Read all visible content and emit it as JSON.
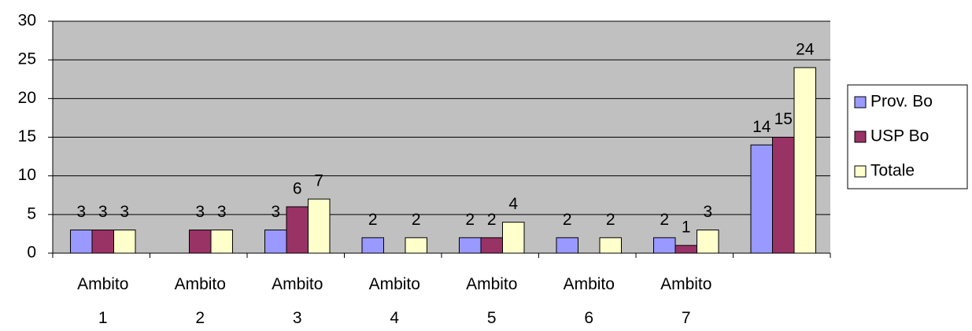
{
  "chart_data": {
    "type": "bar",
    "categories": [
      "Ambito 1",
      "Ambito 2",
      "Ambito 3",
      "Ambito 4",
      "Ambito 5",
      "Ambito 6",
      "Ambito 7",
      null
    ],
    "series": [
      {
        "name": "Prov. Bo",
        "color": "#9999ff",
        "values": [
          3,
          null,
          3,
          2,
          2,
          2,
          2,
          14
        ]
      },
      {
        "name": "USP Bo",
        "color": "#993366",
        "values": [
          3,
          3,
          6,
          null,
          2,
          null,
          1,
          15
        ]
      },
      {
        "name": "Totale",
        "color": "#ffffcc",
        "values": [
          3,
          3,
          7,
          2,
          4,
          2,
          3,
          24
        ]
      }
    ],
    "ylim": [
      0,
      30
    ],
    "yticks": [
      0,
      5,
      10,
      15,
      20,
      25,
      30
    ],
    "grid": true,
    "legend": "right"
  }
}
